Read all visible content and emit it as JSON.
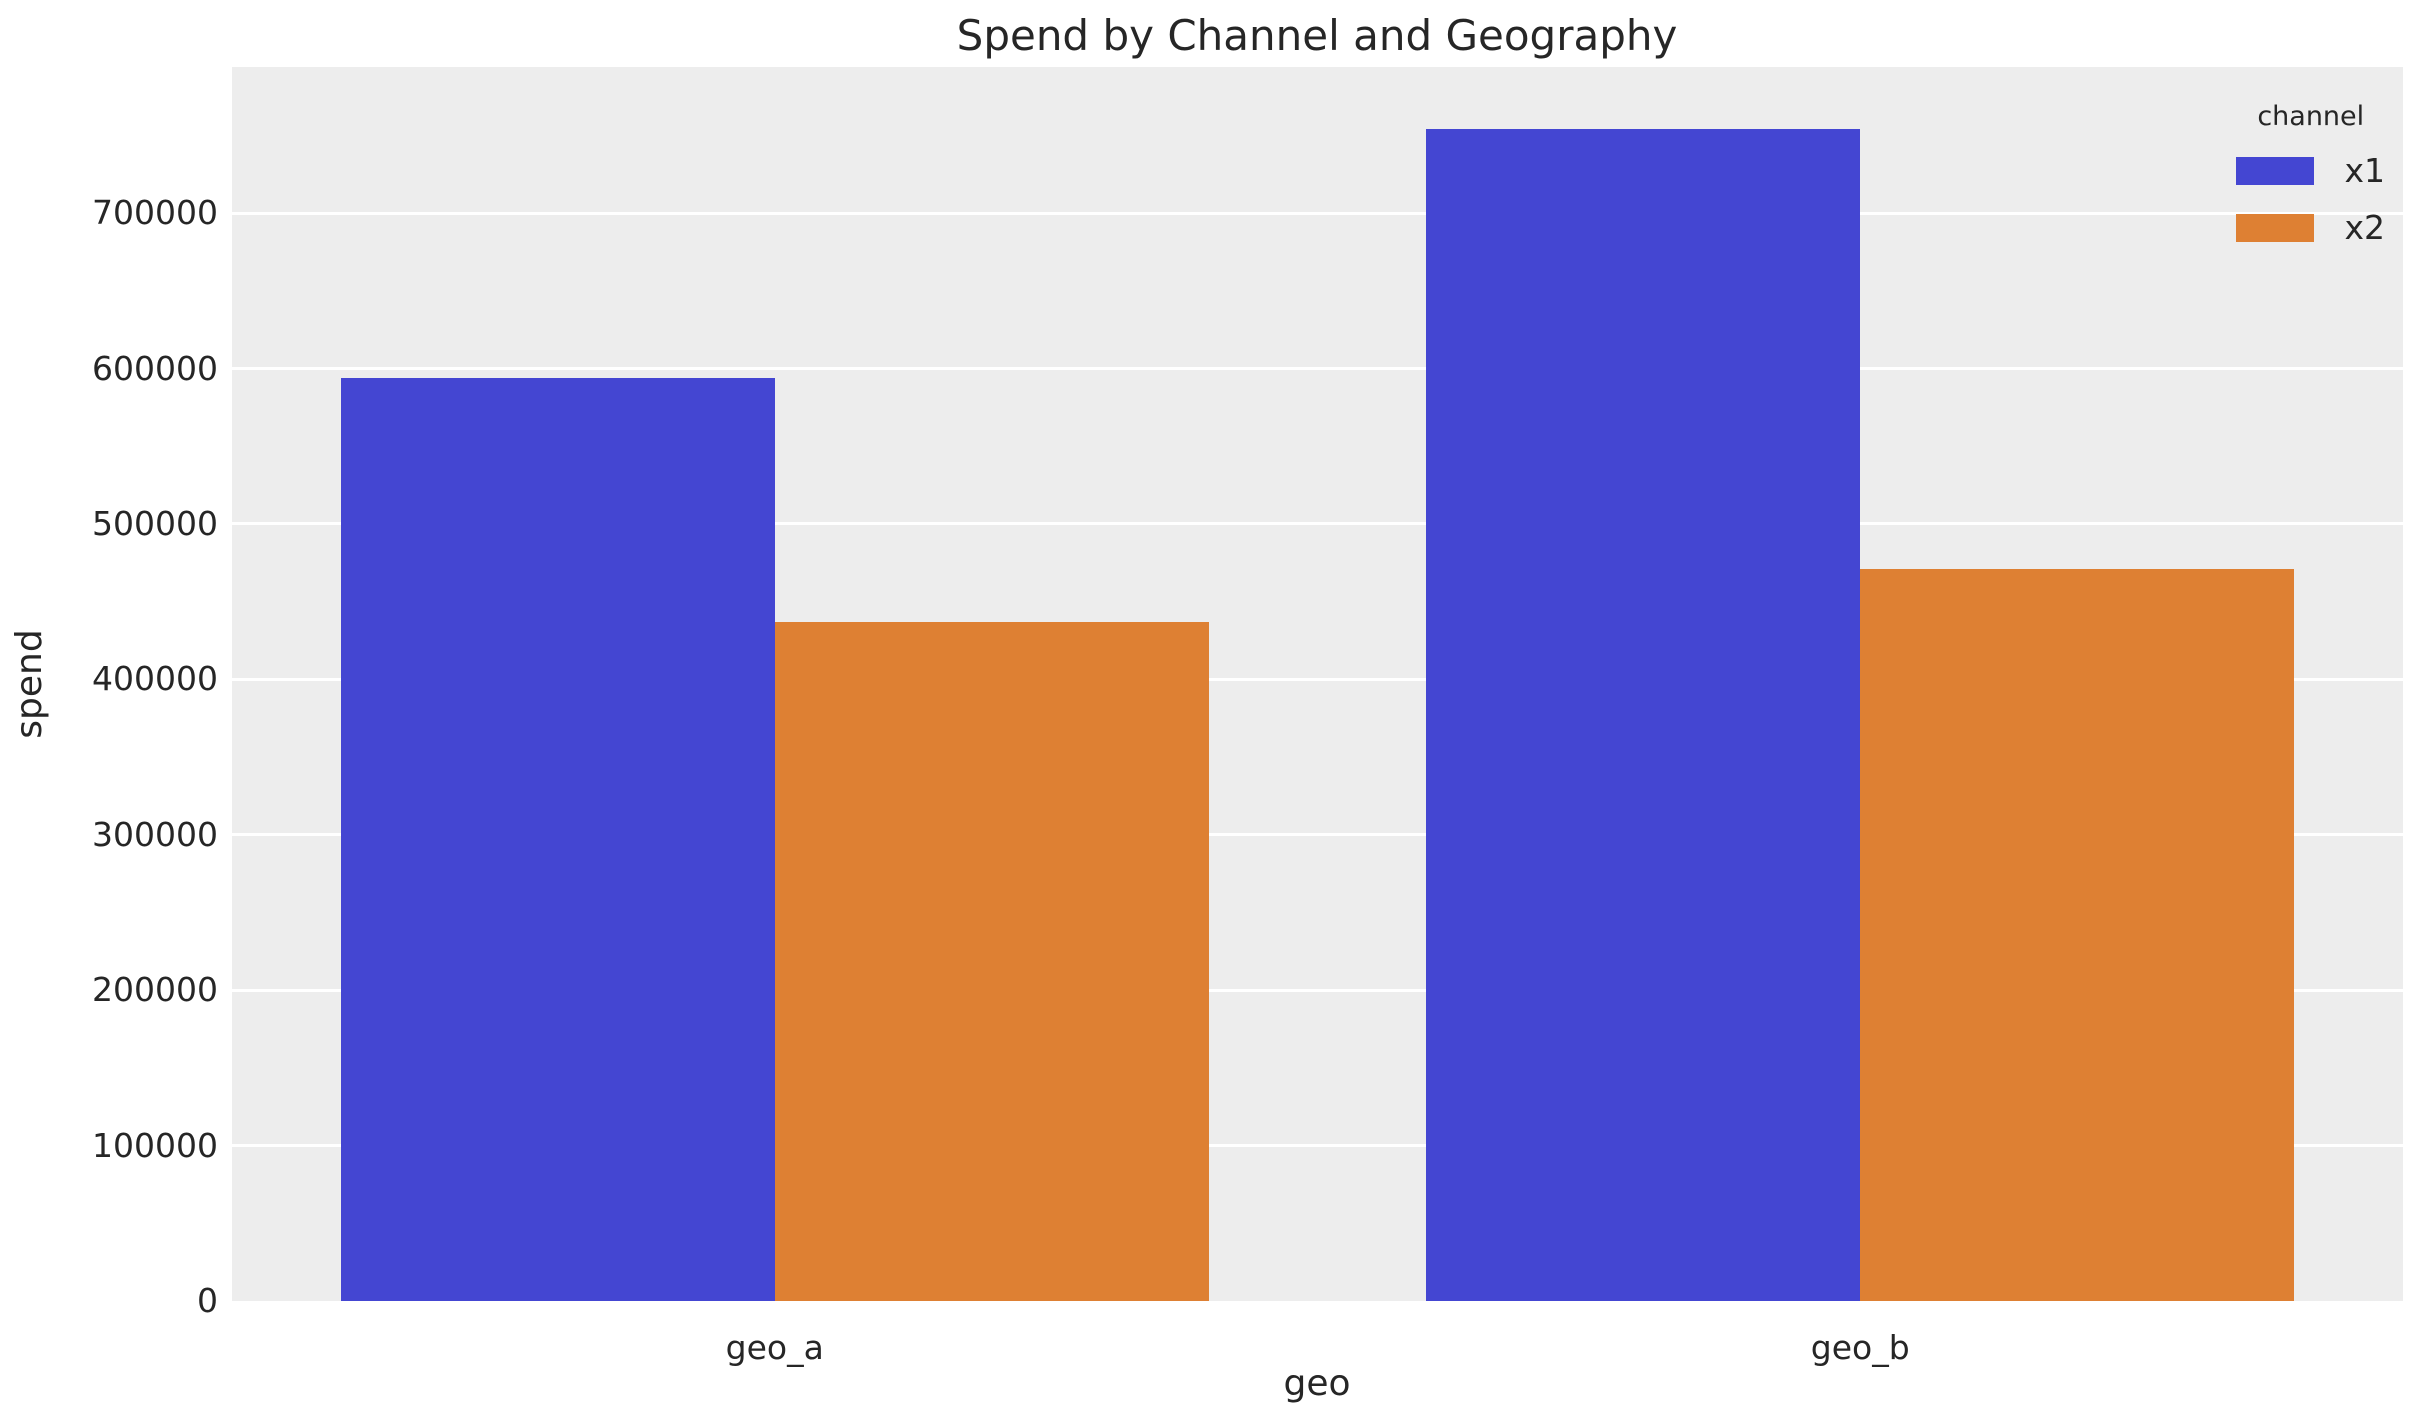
{
  "chart_data": {
    "type": "bar",
    "title": "Spend by Channel and Geography",
    "xlabel": "geo",
    "ylabel": "spend",
    "legend_title": "channel",
    "legend_position": "upper right",
    "grid": "horizontal-white-lines",
    "plot_background": "#EDEDED",
    "text_color": "#262626",
    "categories": [
      "geo_a",
      "geo_b"
    ],
    "series": [
      {
        "name": "x1",
        "color": "#4446D2",
        "values": [
          594000,
          754000
        ]
      },
      {
        "name": "x2",
        "color": "#DE8033",
        "values": [
          437000,
          471000
        ]
      }
    ],
    "ylim": [
      0,
      794000
    ],
    "yticks": [
      0,
      100000,
      200000,
      300000,
      400000,
      500000,
      600000,
      700000
    ]
  }
}
